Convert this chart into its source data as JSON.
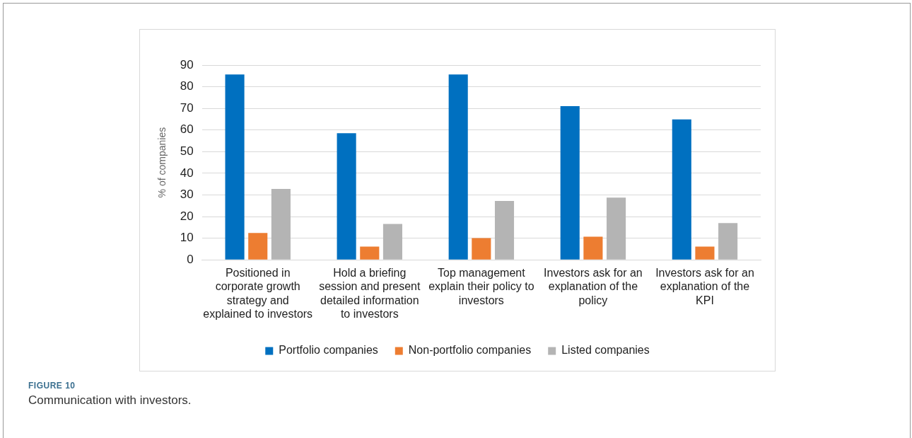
{
  "chart_data": {
    "type": "bar",
    "ylabel": "% of companies",
    "categories": [
      "Positioned in corporate growth strategy and explained to investors",
      "Hold a briefing session and present detailed information to investors",
      "Top management explain their policy to investors",
      "Investors ask for an explanation of the policy",
      "Investors ask for an explanation of the KPI"
    ],
    "series": [
      {
        "name": "Portfolio companies",
        "color": "#0070c0",
        "values": [
          85.7,
          58.5,
          85.7,
          71,
          64.9
        ]
      },
      {
        "name": "Non-portfolio companies",
        "color": "#ed7d31",
        "values": [
          12.4,
          6.1,
          10,
          10.7,
          6.1
        ]
      },
      {
        "name": "Listed companies",
        "color": "#b4b4b4",
        "values": [
          32.8,
          16.6,
          27.2,
          28.8,
          17
        ]
      }
    ],
    "ylim": [
      0,
      90
    ],
    "yticks": [
      0,
      10,
      20,
      30,
      40,
      50,
      60,
      70,
      80,
      90
    ],
    "grid": "y",
    "legend": "bottom",
    "annotations": [
      "FIGURE 10",
      "Communication with investors."
    ]
  }
}
